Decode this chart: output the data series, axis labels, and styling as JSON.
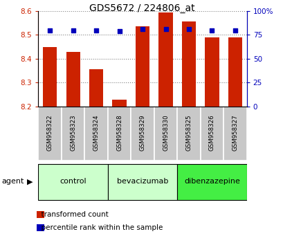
{
  "title": "GDS5672 / 224806_at",
  "samples": [
    "GSM958322",
    "GSM958323",
    "GSM958324",
    "GSM958328",
    "GSM958329",
    "GSM958330",
    "GSM958325",
    "GSM958326",
    "GSM958327"
  ],
  "bar_values": [
    8.45,
    8.43,
    8.355,
    8.23,
    8.535,
    8.595,
    8.555,
    8.49,
    8.49
  ],
  "percentile_values": [
    80,
    80,
    80,
    79,
    81,
    81,
    81,
    80,
    80
  ],
  "bar_bottom": 8.2,
  "ylim_left": [
    8.2,
    8.6
  ],
  "ylim_right": [
    0,
    100
  ],
  "yticks_left": [
    8.2,
    8.3,
    8.4,
    8.5,
    8.6
  ],
  "yticks_right": [
    0,
    25,
    50,
    75,
    100
  ],
  "bar_color": "#cc2200",
  "dot_color": "#0000bb",
  "groups": [
    {
      "label": "control",
      "indices": [
        0,
        1,
        2
      ],
      "color": "#ccffcc"
    },
    {
      "label": "bevacizumab",
      "indices": [
        3,
        4,
        5
      ],
      "color": "#ccffcc"
    },
    {
      "label": "dibenzazepine",
      "indices": [
        6,
        7,
        8
      ],
      "color": "#44ee44"
    }
  ],
  "agent_label": "agent",
  "legend_bar_label": "transformed count",
  "legend_dot_label": "percentile rank within the sample",
  "plot_bg_color": "#ffffff",
  "left_axis_color": "#cc2200",
  "right_axis_color": "#0000bb",
  "bar_width": 0.6
}
